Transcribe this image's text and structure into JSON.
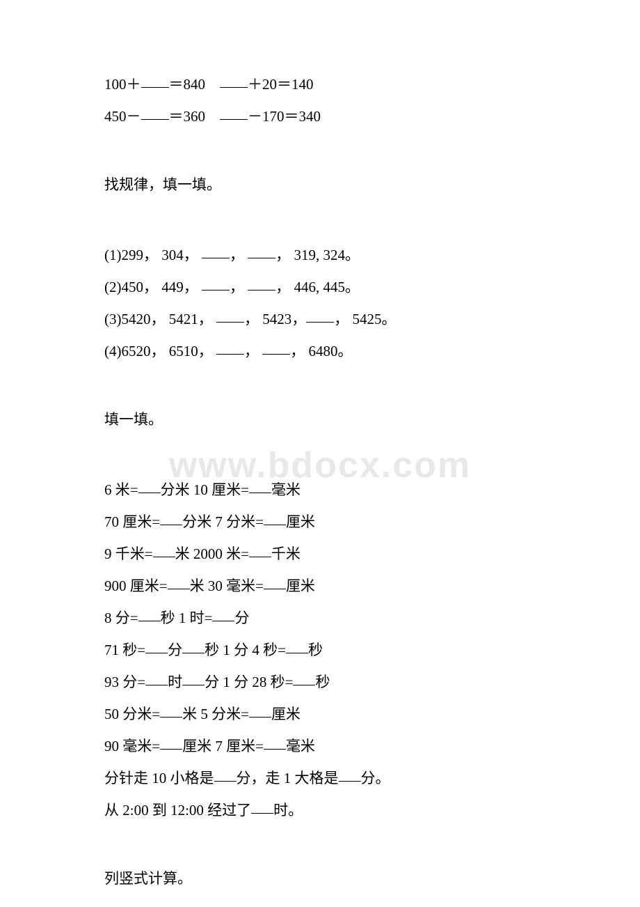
{
  "watermark": "www.bdocx.com",
  "section1": {
    "line1_a": "100＋",
    "line1_b": "＝840　",
    "line1_c": "＋20＝140",
    "line2_a": "450－",
    "line2_b": "＝360　",
    "line2_c": "－170＝340"
  },
  "section2": {
    "title": "找规律，填一填。",
    "q1_a": "(1)299，  304， ",
    "q1_b": "， ",
    "q1_c": "，  319, 324。",
    "q2_a": "(2)450，  449， ",
    "q2_b": "， ",
    "q2_c": "，  446, 445。",
    "q3_a": "(3)5420，  5421， ",
    "q3_b": "，  5423，",
    "q3_c": "，  5425。",
    "q4_a": "(4)6520，  6510， ",
    "q4_b": "， ",
    "q4_c": "，  6480。"
  },
  "section3": {
    "title": "填一填。",
    "l1_a": "6 米=",
    "l1_b": "分米   10 厘米=",
    "l1_c": "毫米",
    "l2_a": "70 厘米=",
    "l2_b": "分米   7 分米=",
    "l2_c": "厘米",
    "l3_a": "9 千米=",
    "l3_b": "米   2000 米=",
    "l3_c": "千米",
    "l4_a": "900 厘米=",
    "l4_b": "米   30 毫米=",
    "l4_c": "厘米",
    "l5_a": "8 分=",
    "l5_b": "秒   1 时=",
    "l5_c": "分",
    "l6_a": "71 秒=",
    "l6_b": "分",
    "l6_c": "秒   1 分 4 秒=",
    "l6_d": "秒",
    "l7_a": "93 分=",
    "l7_b": "时",
    "l7_c": "分   1 分 28 秒=",
    "l7_d": "秒",
    "l8_a": "50 分米=",
    "l8_b": "米   5 分米=",
    "l8_c": "厘米",
    "l9_a": "90 毫米=",
    "l9_b": "厘米   7 厘米=",
    "l9_c": "毫米",
    "l10_a": "分针走 10 小格是",
    "l10_b": "分，走 1 大格是",
    "l10_c": "分。",
    "l11_a": "从 2:00 到 12:00 经过了",
    "l11_b": "时。"
  },
  "section4": {
    "title": "列竖式计算。"
  }
}
